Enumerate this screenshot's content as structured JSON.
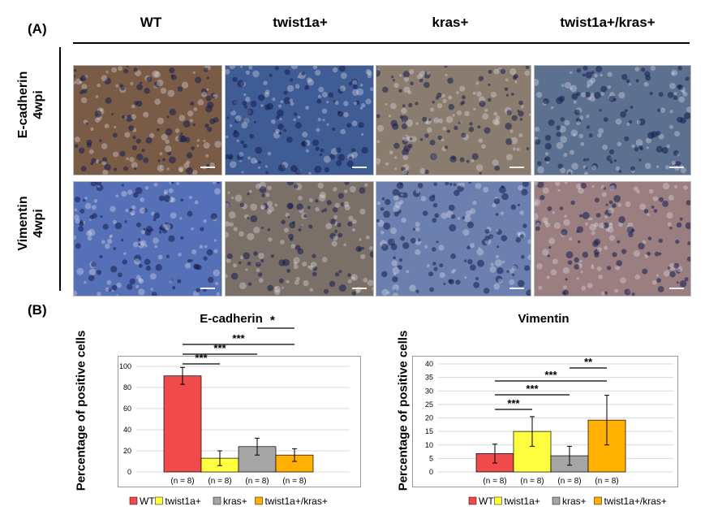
{
  "panel_a_label": "(A)",
  "panel_b_label": "(B)",
  "columns": [
    "WT",
    "twist1a+",
    "kras+",
    "twist1a+/kras+"
  ],
  "rows": [
    {
      "title": "E-cadherin",
      "subtitle": "4wpi"
    },
    {
      "title": "Vimentin",
      "subtitle": "4wpi"
    }
  ],
  "micrograph_colors": {
    "ecad": [
      "#7a5b45",
      "#3f5c94",
      "#8a7c6e",
      "#5c7090"
    ],
    "vim": [
      "#5670b8",
      "#7a7068",
      "#6c80b0",
      "#9a7e80"
    ]
  },
  "n_label": "(n = 8)",
  "chart_data": [
    {
      "type": "bar",
      "title": "E-cadherin",
      "title_mark": "*",
      "ylabel": "Percentage of positive cells",
      "categories": [
        "WT",
        "twist1a+",
        "kras+",
        "twist1a+/kras+"
      ],
      "values": [
        91,
        13,
        24,
        16
      ],
      "errors": [
        8,
        7,
        8,
        6
      ],
      "colors": [
        "#f04a4a",
        "#ffff40",
        "#a5a5a5",
        "#ffb000"
      ],
      "ylim": [
        0,
        100
      ],
      "yticks": [
        0,
        20,
        40,
        60,
        80,
        100
      ],
      "grid": true,
      "significance": [
        {
          "from": 0,
          "to": 1,
          "label": "***"
        },
        {
          "from": 0,
          "to": 2,
          "label": "***"
        },
        {
          "from": 0,
          "to": 3,
          "label": "***"
        },
        {
          "from": 2,
          "to": 3,
          "label": ""
        }
      ],
      "legend": [
        "WT",
        "twist1a+",
        "kras+",
        "twist1a+/kras+"
      ]
    },
    {
      "type": "bar",
      "title": "Vimentin",
      "ylabel": "Percentage of positive cells",
      "categories": [
        "WT",
        "twist1a+",
        "kras+",
        "twist1a+/kras+"
      ],
      "values": [
        6.8,
        15,
        6,
        19.2
      ],
      "errors": [
        3.5,
        5.5,
        3.5,
        9.2
      ],
      "colors": [
        "#f04a4a",
        "#ffff40",
        "#a5a5a5",
        "#ffb000"
      ],
      "ylim": [
        0,
        40
      ],
      "yticks": [
        0,
        5,
        10,
        15,
        20,
        25,
        30,
        35,
        40
      ],
      "grid": true,
      "significance": [
        {
          "from": 0,
          "to": 1,
          "label": "***"
        },
        {
          "from": 0,
          "to": 2,
          "label": "***"
        },
        {
          "from": 0,
          "to": 3,
          "label": "***"
        },
        {
          "from": 2,
          "to": 3,
          "label": "**"
        }
      ],
      "legend": [
        "WT",
        "twist1a+",
        "kras+",
        "twist1a+/kras+"
      ]
    }
  ]
}
